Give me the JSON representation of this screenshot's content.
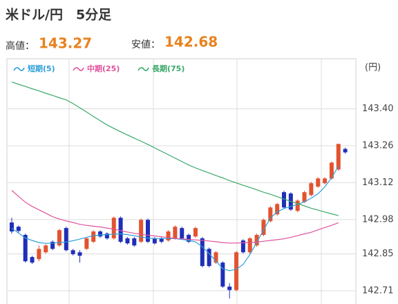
{
  "chart_data": {
    "type": "candlestick",
    "title": "米ドル/円　5分足",
    "summary": [
      {
        "label": "高値：",
        "value": 143.27
      },
      {
        "label": "安値：",
        "value": 142.68
      }
    ],
    "y_label": "(円)",
    "ylim": [
      142.66,
      143.59
    ],
    "yticks": [
      {
        "value": 143.4,
        "label": "143.40"
      },
      143.26,
      143.12,
      142.98,
      142.85,
      142.71
    ],
    "grid": true,
    "up_color": "#e2532f",
    "down_color": "#1f2fb8",
    "open": [
      142.969,
      142.953,
      142.922,
      142.838,
      142.83,
      142.856,
      142.896,
      142.882,
      142.948,
      142.864,
      142.856,
      142.869,
      142.896,
      142.935,
      142.927,
      142.909,
      142.987,
      142.909,
      142.909,
      142.896,
      142.979,
      142.909,
      142.909,
      142.901,
      142.909,
      142.948,
      142.922,
      142.916,
      142.909,
      142.869,
      142.817,
      142.817,
      142.726,
      142.713,
      142.901,
      142.856,
      142.882,
      142.922,
      142.974,
      143.0,
      143.084,
      143.079,
      143.013,
      143.047,
      143.073,
      143.105,
      143.118,
      143.136,
      143.17,
      143.248
    ],
    "high": [
      142.987,
      142.958,
      142.927,
      142.843,
      142.882,
      142.887,
      142.901,
      142.945,
      142.953,
      142.869,
      142.864,
      142.914,
      142.94,
      142.94,
      142.932,
      142.992,
      142.992,
      142.914,
      142.914,
      142.984,
      142.984,
      142.914,
      142.914,
      142.94,
      142.958,
      142.953,
      142.927,
      142.953,
      142.914,
      142.874,
      142.861,
      142.822,
      142.739,
      142.861,
      142.906,
      142.914,
      142.927,
      142.984,
      143.031,
      143.044,
      143.089,
      143.084,
      143.057,
      143.089,
      143.123,
      143.141,
      143.141,
      143.201,
      143.267,
      143.253
    ],
    "low": [
      142.927,
      142.93,
      142.817,
      142.812,
      142.822,
      142.851,
      142.864,
      142.877,
      142.859,
      142.844,
      142.817,
      142.864,
      142.891,
      142.911,
      142.904,
      142.904,
      142.891,
      142.885,
      142.877,
      142.891,
      142.891,
      142.885,
      142.891,
      142.896,
      142.904,
      142.904,
      142.891,
      142.911,
      142.799,
      142.799,
      142.812,
      142.721,
      142.681,
      142.708,
      142.851,
      142.851,
      142.877,
      142.917,
      142.969,
      142.995,
      143.021,
      143.013,
      143.008,
      143.042,
      143.068,
      143.1,
      143.113,
      143.131,
      143.165,
      143.23
    ],
    "close": [
      142.935,
      142.937,
      142.822,
      142.817,
      142.869,
      142.882,
      142.869,
      142.94,
      142.864,
      142.849,
      142.843,
      142.909,
      142.935,
      142.916,
      142.909,
      142.987,
      142.896,
      142.89,
      142.882,
      142.979,
      142.896,
      142.89,
      142.896,
      142.935,
      142.953,
      142.909,
      142.896,
      142.948,
      142.804,
      142.804,
      142.856,
      142.726,
      142.713,
      142.856,
      142.856,
      142.909,
      142.922,
      142.979,
      143.026,
      143.039,
      143.026,
      143.018,
      143.052,
      143.084,
      143.118,
      143.136,
      143.136,
      143.196,
      143.267,
      143.235
    ],
    "series": [
      {
        "name": "短期(5)",
        "color": "#2d9fd8",
        "values": [
          142.947,
          142.929,
          142.91,
          142.901,
          142.893,
          142.89,
          142.891,
          142.893,
          142.895,
          142.9,
          142.906,
          142.913,
          142.919,
          142.922,
          142.923,
          142.925,
          142.926,
          142.923,
          142.919,
          142.914,
          142.91,
          142.908,
          142.908,
          142.908,
          142.908,
          142.905,
          142.901,
          142.896,
          142.877,
          142.851,
          142.823,
          142.794,
          142.786,
          142.792,
          142.81,
          142.848,
          142.894,
          142.94,
          142.986,
          143.009,
          143.022,
          143.03,
          143.037,
          143.048,
          143.061,
          143.078,
          143.104,
          143.139,
          143.183,
          null
        ]
      },
      {
        "name": "中期(25)",
        "color": "#e0529c",
        "values": [
          143.091,
          143.068,
          143.046,
          143.03,
          143.017,
          143.004,
          142.991,
          142.982,
          142.975,
          142.969,
          142.962,
          142.958,
          142.955,
          142.952,
          142.948,
          142.944,
          142.938,
          142.933,
          142.928,
          142.924,
          142.921,
          142.918,
          142.915,
          142.912,
          142.909,
          142.907,
          142.905,
          142.903,
          142.901,
          142.899,
          142.896,
          142.893,
          142.891,
          142.891,
          142.892,
          142.893,
          142.895,
          142.898,
          142.901,
          142.904,
          142.907,
          142.913,
          142.919,
          142.926,
          142.932,
          142.941,
          142.95,
          142.958,
          142.968,
          null
        ]
      },
      {
        "name": "長期(75)",
        "color": "#3aa86a",
        "values": [
          143.502,
          143.493,
          143.485,
          143.476,
          143.468,
          143.459,
          143.451,
          143.442,
          143.434,
          143.42,
          143.404,
          143.388,
          143.371,
          143.355,
          143.339,
          143.326,
          143.313,
          143.301,
          143.289,
          143.277,
          143.265,
          143.252,
          143.239,
          143.226,
          143.213,
          143.2,
          143.187,
          143.176,
          143.166,
          143.157,
          143.147,
          143.138,
          143.128,
          143.119,
          143.11,
          143.102,
          143.093,
          143.084,
          143.076,
          143.067,
          143.058,
          143.049,
          143.041,
          143.032,
          143.023,
          143.016,
          143.009,
          143.002,
          142.995,
          null
        ]
      }
    ]
  }
}
